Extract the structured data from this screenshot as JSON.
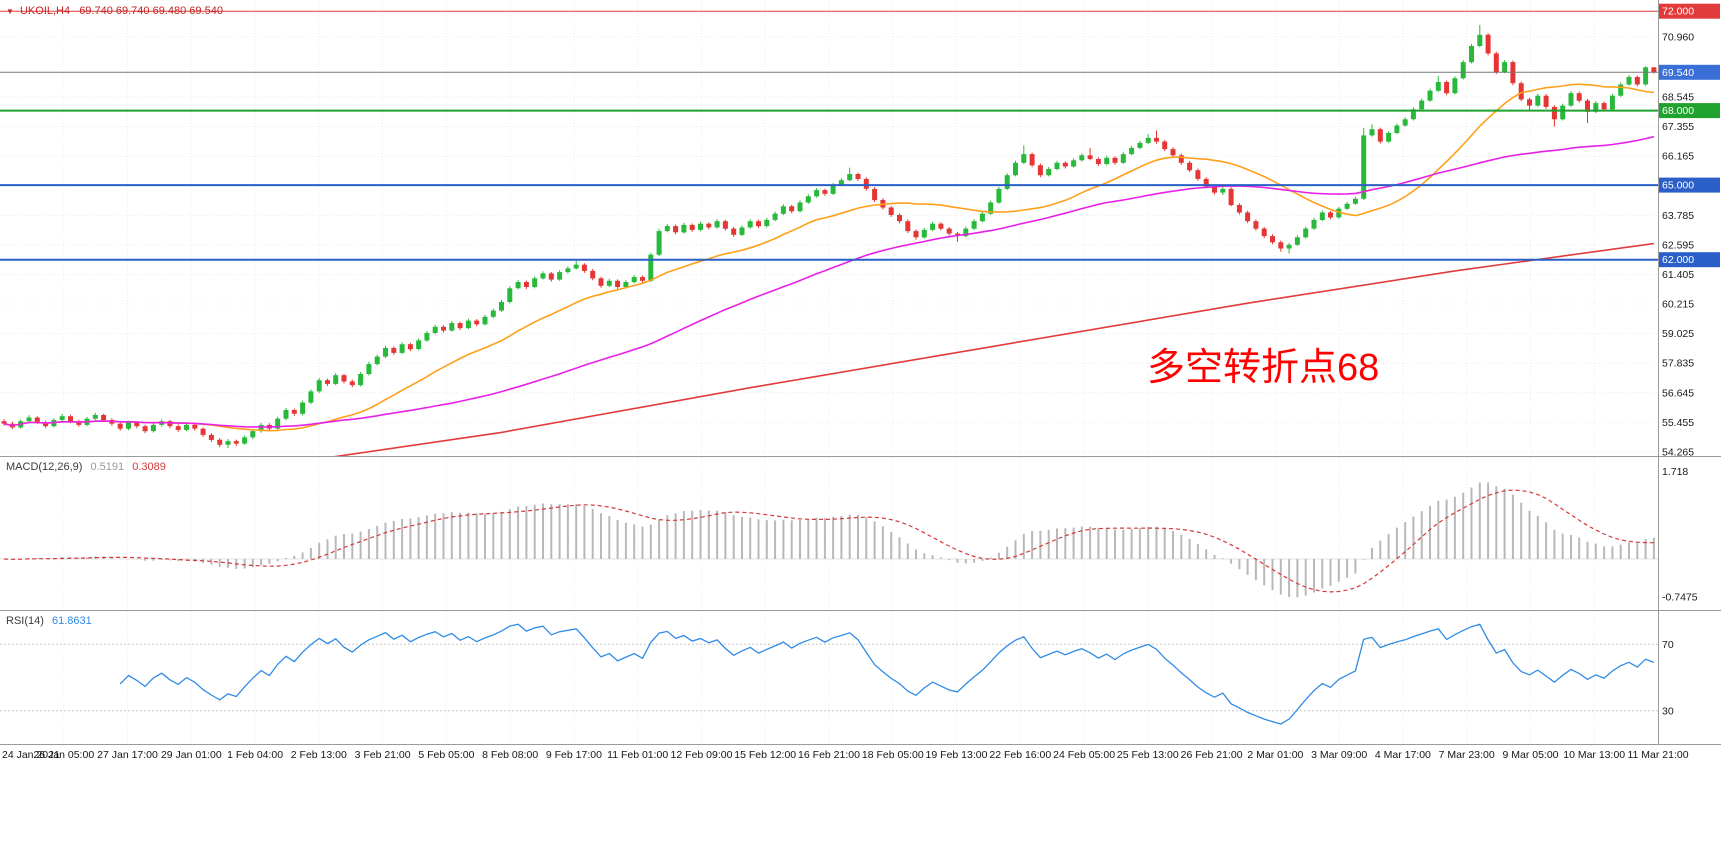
{
  "header": {
    "dropdown_icon": "▼",
    "symbol": "UKOIL,H4",
    "ohlc_values": "69.740 69.740 69.480 69.540"
  },
  "annotation": {
    "text": "多空转折点68",
    "color": "#ff0000"
  },
  "chart_data": {
    "type": "candlestick",
    "symbol": "UKOIL",
    "timeframe": "H4",
    "title": "UKOIL,H4 69.740 69.740 69.480 69.540",
    "grid": true,
    "grid_color": "#ececec",
    "up_color": "#28b93c",
    "down_color": "#e53535",
    "price_domain": [
      54.1,
      72.45
    ],
    "price_axis_labels": [
      70.96,
      68.545,
      67.355,
      66.165,
      63.785,
      62.595,
      61.405,
      60.215,
      59.025,
      57.835,
      56.645,
      55.455,
      54.265
    ],
    "price_badges": [
      {
        "label": "72.000",
        "value": 72.0,
        "color": "#e23b3b"
      },
      {
        "label": "69.540",
        "value": 69.54,
        "color": "#3a6fd8"
      },
      {
        "label": "68.000",
        "value": 68.0,
        "color": "#1fa32e"
      },
      {
        "label": "65.000",
        "value": 65.0,
        "color": "#2a5fc8"
      },
      {
        "label": "62.000",
        "value": 62.0,
        "color": "#2a5fc8"
      }
    ],
    "horizontal_levels": [
      {
        "value": 72.0,
        "color": "#e23b3b",
        "width": 1
      },
      {
        "value": 68.0,
        "color": "#1fa32e",
        "width": 2
      },
      {
        "value": 65.0,
        "color": "#2a5fc8",
        "width": 2
      },
      {
        "value": 62.0,
        "color": "#2a5fc8",
        "width": 2
      }
    ],
    "current_price": 69.54,
    "current_price_line_color": "#777777",
    "moving_averages": [
      {
        "name": "fast-ma",
        "period": 20,
        "color": "#ff9f1a"
      },
      {
        "name": "medium-ma",
        "period": 55,
        "color": "#e820e8"
      },
      {
        "name": "slow-trend-ma",
        "color": "#e23b3b",
        "anchors": [
          [
            26,
            53.4
          ],
          [
            60,
            55.05
          ],
          [
            90,
            56.85
          ],
          [
            120,
            58.55
          ],
          [
            150,
            60.25
          ],
          [
            175,
            61.55
          ],
          [
            199,
            62.65
          ]
        ]
      }
    ],
    "time_labels": [
      "24 Jan 2021",
      "26 Jan 05:00",
      "27 Jan 17:00",
      "29 Jan 01:00",
      "1 Feb 04:00",
      "2 Feb 13:00",
      "3 Feb 21:00",
      "5 Feb 05:00",
      "8 Feb 08:00",
      "9 Feb 17:00",
      "11 Feb 01:00",
      "12 Feb 09:00",
      "15 Feb 12:00",
      "16 Feb 21:00",
      "18 Feb 05:00",
      "19 Feb 13:00",
      "22 Feb 16:00",
      "24 Feb 05:00",
      "25 Feb 13:00",
      "26 Feb 21:00",
      "2 Mar 01:00",
      "3 Mar 09:00",
      "4 Mar 17:00",
      "7 Mar 23:00",
      "9 Mar 05:00",
      "10 Mar 13:00",
      "11 Mar 21:00"
    ],
    "indicators": {
      "macd": {
        "label": "MACD(12,26,9)",
        "main_value": "0.5191",
        "signal_value": "0.3089",
        "fast": 12,
        "slow": 26,
        "signal": 9,
        "hist_color": "#b8b8b8",
        "signal_color": "#d43a3a",
        "range": [
          -1.0,
          2.0
        ],
        "axis_labels": [
          {
            "text": "1.718",
            "value": 1.718
          },
          {
            "text": "-0.7475",
            "value": -0.7475
          }
        ]
      },
      "rsi": {
        "label": "RSI(14)",
        "value": "61.8631",
        "period": 14,
        "color": "#2f8be6",
        "levels": [
          70,
          30
        ],
        "range": [
          10,
          90
        ]
      }
    },
    "candles": [
      [
        55.5,
        55.58,
        55.32,
        55.4
      ],
      [
        55.4,
        55.48,
        55.18,
        55.25
      ],
      [
        55.25,
        55.57,
        55.2,
        55.5
      ],
      [
        55.5,
        55.74,
        55.42,
        55.65
      ],
      [
        55.65,
        55.7,
        55.38,
        55.45
      ],
      [
        55.45,
        55.52,
        55.22,
        55.3
      ],
      [
        55.3,
        55.62,
        55.25,
        55.55
      ],
      [
        55.55,
        55.8,
        55.48,
        55.7
      ],
      [
        55.7,
        55.76,
        55.42,
        55.5
      ],
      [
        55.5,
        55.56,
        55.28,
        55.35
      ],
      [
        55.35,
        55.67,
        55.3,
        55.6
      ],
      [
        55.6,
        55.84,
        55.54,
        55.75
      ],
      [
        55.75,
        55.8,
        55.47,
        55.55
      ],
      [
        55.55,
        55.62,
        55.32,
        55.4
      ],
      [
        55.4,
        55.46,
        55.12,
        55.2
      ],
      [
        55.2,
        55.52,
        55.14,
        55.45
      ],
      [
        55.45,
        55.5,
        55.22,
        55.3
      ],
      [
        55.3,
        55.36,
        55.02,
        55.1
      ],
      [
        55.1,
        55.42,
        55.04,
        55.35
      ],
      [
        55.35,
        55.58,
        55.28,
        55.5
      ],
      [
        55.5,
        55.55,
        55.22,
        55.3
      ],
      [
        55.3,
        55.37,
        55.07,
        55.15
      ],
      [
        55.15,
        55.43,
        55.1,
        55.35
      ],
      [
        55.35,
        55.4,
        55.12,
        55.2
      ],
      [
        55.2,
        55.25,
        54.87,
        54.95
      ],
      [
        54.95,
        55.02,
        54.66,
        54.75
      ],
      [
        54.75,
        54.82,
        54.46,
        54.55
      ],
      [
        54.55,
        54.78,
        54.42,
        54.7
      ],
      [
        54.7,
        54.76,
        54.5,
        54.6
      ],
      [
        54.6,
        54.93,
        54.55,
        54.85
      ],
      [
        54.85,
        55.18,
        54.78,
        55.1
      ],
      [
        55.1,
        55.43,
        55.04,
        55.35
      ],
      [
        55.35,
        55.42,
        55.12,
        55.2
      ],
      [
        55.2,
        55.68,
        55.15,
        55.6
      ],
      [
        55.6,
        56.03,
        55.54,
        55.95
      ],
      [
        55.95,
        56.01,
        55.72,
        55.8
      ],
      [
        55.8,
        56.33,
        55.74,
        56.25
      ],
      [
        56.25,
        56.78,
        56.19,
        56.7
      ],
      [
        56.7,
        57.24,
        56.64,
        57.15
      ],
      [
        57.15,
        57.21,
        56.92,
        57.0
      ],
      [
        57.0,
        57.43,
        56.95,
        57.35
      ],
      [
        57.35,
        57.41,
        57.02,
        57.1
      ],
      [
        57.1,
        57.17,
        56.87,
        56.95
      ],
      [
        56.95,
        57.48,
        56.9,
        57.4
      ],
      [
        57.4,
        57.89,
        57.34,
        57.8
      ],
      [
        57.8,
        58.18,
        57.74,
        58.1
      ],
      [
        58.1,
        58.53,
        58.04,
        58.45
      ],
      [
        58.45,
        58.51,
        58.17,
        58.25
      ],
      [
        58.25,
        58.68,
        58.2,
        58.6
      ],
      [
        58.6,
        58.66,
        58.32,
        58.4
      ],
      [
        58.4,
        58.83,
        58.35,
        58.75
      ],
      [
        58.75,
        59.13,
        58.7,
        59.05
      ],
      [
        59.05,
        59.38,
        59.0,
        59.3
      ],
      [
        59.3,
        59.36,
        59.07,
        59.15
      ],
      [
        59.15,
        59.53,
        59.1,
        59.45
      ],
      [
        59.45,
        59.51,
        59.17,
        59.25
      ],
      [
        59.25,
        59.63,
        59.2,
        59.55
      ],
      [
        59.55,
        59.61,
        59.32,
        59.4
      ],
      [
        59.4,
        59.78,
        59.35,
        59.7
      ],
      [
        59.7,
        60.03,
        59.65,
        59.95
      ],
      [
        59.95,
        60.38,
        59.9,
        60.3
      ],
      [
        60.3,
        60.93,
        60.24,
        60.85
      ],
      [
        60.85,
        61.18,
        60.8,
        61.1
      ],
      [
        61.1,
        61.16,
        60.82,
        60.9
      ],
      [
        60.9,
        61.33,
        60.85,
        61.25
      ],
      [
        61.25,
        61.53,
        61.2,
        61.45
      ],
      [
        61.45,
        61.51,
        61.12,
        61.2
      ],
      [
        61.2,
        61.58,
        61.15,
        61.5
      ],
      [
        61.5,
        61.73,
        61.45,
        61.65
      ],
      [
        61.65,
        61.95,
        61.6,
        61.8
      ],
      [
        61.8,
        61.86,
        61.47,
        61.55
      ],
      [
        61.55,
        61.62,
        61.17,
        61.25
      ],
      [
        61.25,
        61.31,
        60.87,
        60.95
      ],
      [
        60.95,
        61.23,
        60.9,
        61.15
      ],
      [
        61.15,
        61.21,
        60.82,
        60.9
      ],
      [
        60.9,
        61.18,
        60.85,
        61.1
      ],
      [
        61.1,
        61.38,
        61.05,
        61.3
      ],
      [
        61.3,
        61.36,
        61.07,
        61.15
      ],
      [
        61.15,
        62.28,
        61.1,
        62.2
      ],
      [
        62.2,
        63.24,
        62.15,
        63.15
      ],
      [
        63.15,
        63.43,
        63.1,
        63.35
      ],
      [
        63.35,
        63.41,
        63.02,
        63.1
      ],
      [
        63.1,
        63.48,
        63.05,
        63.4
      ],
      [
        63.4,
        63.46,
        63.12,
        63.2
      ],
      [
        63.2,
        63.53,
        63.15,
        63.45
      ],
      [
        63.45,
        63.51,
        63.22,
        63.3
      ],
      [
        63.3,
        63.63,
        63.25,
        63.55
      ],
      [
        63.55,
        63.61,
        63.17,
        63.25
      ],
      [
        63.25,
        63.32,
        62.92,
        63.0
      ],
      [
        63.0,
        63.38,
        62.95,
        63.3
      ],
      [
        63.3,
        63.63,
        63.25,
        63.55
      ],
      [
        63.55,
        63.61,
        63.27,
        63.35
      ],
      [
        63.35,
        63.68,
        63.3,
        63.6
      ],
      [
        63.6,
        63.93,
        63.55,
        63.85
      ],
      [
        63.85,
        64.23,
        63.8,
        64.15
      ],
      [
        64.15,
        64.21,
        63.87,
        63.95
      ],
      [
        63.95,
        64.38,
        63.9,
        64.3
      ],
      [
        64.3,
        64.63,
        64.25,
        64.55
      ],
      [
        64.55,
        64.88,
        64.5,
        64.8
      ],
      [
        64.8,
        64.86,
        64.57,
        64.65
      ],
      [
        64.65,
        65.08,
        64.6,
        65.0
      ],
      [
        65.0,
        65.28,
        64.95,
        65.2
      ],
      [
        65.2,
        65.7,
        65.15,
        65.45
      ],
      [
        65.45,
        65.51,
        65.17,
        65.25
      ],
      [
        65.25,
        65.31,
        64.77,
        64.85
      ],
      [
        64.85,
        64.92,
        64.32,
        64.4
      ],
      [
        64.4,
        64.47,
        64.02,
        64.1
      ],
      [
        64.1,
        64.17,
        63.72,
        63.8
      ],
      [
        63.8,
        63.87,
        63.47,
        63.55
      ],
      [
        63.55,
        63.62,
        63.07,
        63.15
      ],
      [
        63.15,
        63.22,
        62.8,
        62.9
      ],
      [
        62.9,
        63.28,
        62.85,
        63.2
      ],
      [
        63.2,
        63.53,
        63.15,
        63.45
      ],
      [
        63.45,
        63.51,
        63.17,
        63.25
      ],
      [
        63.25,
        63.31,
        62.97,
        63.05
      ],
      [
        63.05,
        63.12,
        62.72,
        62.95
      ],
      [
        62.95,
        63.33,
        62.9,
        63.25
      ],
      [
        63.25,
        63.63,
        63.2,
        63.55
      ],
      [
        63.55,
        63.93,
        63.5,
        63.85
      ],
      [
        63.85,
        64.38,
        63.8,
        64.3
      ],
      [
        64.3,
        64.93,
        64.25,
        64.85
      ],
      [
        64.85,
        65.48,
        64.8,
        65.4
      ],
      [
        65.4,
        65.98,
        65.35,
        65.9
      ],
      [
        65.9,
        66.6,
        65.85,
        66.25
      ],
      [
        66.25,
        66.31,
        65.72,
        65.8
      ],
      [
        65.8,
        65.87,
        65.32,
        65.4
      ],
      [
        65.4,
        65.73,
        65.35,
        65.65
      ],
      [
        65.65,
        65.98,
        65.6,
        65.9
      ],
      [
        65.9,
        65.96,
        65.67,
        65.75
      ],
      [
        65.75,
        66.08,
        65.7,
        66.0
      ],
      [
        66.0,
        66.28,
        65.95,
        66.2
      ],
      [
        66.2,
        66.5,
        66.0,
        66.05
      ],
      [
        66.05,
        66.12,
        65.77,
        65.85
      ],
      [
        65.85,
        66.18,
        65.8,
        66.1
      ],
      [
        66.1,
        66.16,
        65.82,
        65.9
      ],
      [
        65.9,
        66.33,
        65.85,
        66.25
      ],
      [
        66.25,
        66.58,
        66.2,
        66.5
      ],
      [
        66.5,
        66.78,
        66.45,
        66.7
      ],
      [
        66.7,
        67.05,
        66.65,
        66.9
      ],
      [
        66.9,
        67.2,
        66.67,
        66.75
      ],
      [
        66.75,
        66.82,
        66.37,
        66.45
      ],
      [
        66.45,
        66.52,
        66.12,
        66.2
      ],
      [
        66.2,
        66.27,
        65.82,
        65.9
      ],
      [
        65.9,
        65.97,
        65.52,
        65.6
      ],
      [
        65.6,
        65.67,
        65.17,
        65.25
      ],
      [
        65.25,
        65.32,
        64.87,
        64.95
      ],
      [
        64.95,
        65.02,
        64.62,
        64.7
      ],
      [
        64.7,
        64.95,
        64.6,
        64.85
      ],
      [
        64.85,
        64.92,
        64.15,
        64.2
      ],
      [
        64.2,
        64.27,
        63.82,
        63.9
      ],
      [
        63.9,
        63.97,
        63.47,
        63.55
      ],
      [
        63.55,
        63.62,
        63.17,
        63.25
      ],
      [
        63.25,
        63.32,
        62.87,
        62.95
      ],
      [
        62.95,
        63.02,
        62.62,
        62.7
      ],
      [
        62.7,
        62.77,
        62.32,
        62.45
      ],
      [
        62.45,
        62.68,
        62.25,
        62.6
      ],
      [
        62.6,
        62.98,
        62.55,
        62.9
      ],
      [
        62.9,
        63.33,
        62.85,
        63.25
      ],
      [
        63.25,
        63.68,
        63.2,
        63.6
      ],
      [
        63.6,
        63.98,
        63.55,
        63.9
      ],
      [
        63.9,
        63.96,
        63.62,
        63.7
      ],
      [
        63.7,
        64.13,
        63.65,
        64.05
      ],
      [
        64.05,
        64.33,
        64.0,
        64.25
      ],
      [
        64.25,
        64.53,
        64.2,
        64.45
      ],
      [
        64.45,
        67.3,
        64.4,
        67.0
      ],
      [
        67.0,
        67.45,
        66.95,
        67.25
      ],
      [
        67.25,
        67.31,
        66.67,
        66.75
      ],
      [
        66.75,
        67.18,
        66.7,
        67.1
      ],
      [
        67.1,
        67.48,
        67.05,
        67.4
      ],
      [
        67.4,
        67.73,
        67.35,
        67.65
      ],
      [
        67.65,
        68.13,
        67.6,
        68.05
      ],
      [
        68.05,
        68.48,
        68.0,
        68.4
      ],
      [
        68.4,
        68.88,
        68.35,
        68.8
      ],
      [
        68.8,
        69.4,
        68.75,
        69.15
      ],
      [
        69.15,
        69.21,
        68.62,
        68.7
      ],
      [
        68.7,
        69.38,
        68.65,
        69.3
      ],
      [
        69.3,
        70.03,
        69.25,
        69.95
      ],
      [
        69.95,
        70.68,
        69.9,
        70.6
      ],
      [
        70.6,
        71.45,
        70.55,
        71.05
      ],
      [
        71.05,
        71.12,
        70.22,
        70.3
      ],
      [
        70.3,
        70.37,
        69.47,
        69.55
      ],
      [
        69.55,
        70.03,
        69.5,
        69.95
      ],
      [
        69.95,
        70.02,
        69.02,
        69.1
      ],
      [
        69.1,
        69.17,
        68.37,
        68.45
      ],
      [
        68.45,
        68.52,
        68.02,
        68.2
      ],
      [
        68.2,
        68.68,
        68.15,
        68.6
      ],
      [
        68.6,
        68.67,
        68.07,
        68.15
      ],
      [
        68.15,
        68.22,
        67.35,
        67.65
      ],
      [
        67.65,
        68.28,
        67.6,
        68.2
      ],
      [
        68.2,
        68.78,
        68.15,
        68.7
      ],
      [
        68.7,
        68.77,
        68.32,
        68.4
      ],
      [
        68.4,
        68.47,
        67.5,
        67.95
      ],
      [
        67.95,
        68.38,
        67.9,
        68.3
      ],
      [
        68.3,
        68.37,
        67.97,
        68.05
      ],
      [
        68.05,
        68.68,
        68.0,
        68.6
      ],
      [
        68.6,
        69.13,
        68.55,
        69.05
      ],
      [
        69.05,
        69.43,
        69.0,
        69.35
      ],
      [
        69.35,
        69.41,
        68.97,
        69.05
      ],
      [
        69.05,
        69.78,
        69.0,
        69.74
      ],
      [
        69.74,
        69.74,
        69.48,
        69.54
      ]
    ]
  }
}
